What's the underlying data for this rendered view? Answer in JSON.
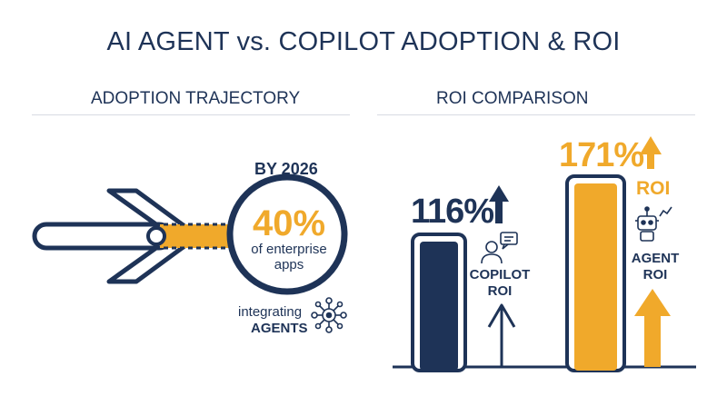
{
  "title": "AI AGENT vs. COPILOT ADOPTION & ROI",
  "adoption": {
    "heading": "ADOPTION TRAJECTORY",
    "year": "BY 2026",
    "percent": "40%",
    "description_line1": "of enterprise",
    "description_line2": "apps",
    "integrating": "integrating",
    "agents": "AGENTS",
    "icons": [
      "arrow-icon",
      "network-icon"
    ]
  },
  "roi": {
    "heading": "ROI COMPARISON",
    "copilot": {
      "value": "116%",
      "label_line1": "COPILOT",
      "label_line2": "ROI",
      "icon": "person-chat-icon"
    },
    "agent": {
      "value": "171%",
      "roi_word": "ROI",
      "label_line1": "AGENT",
      "label_line2": "ROI",
      "icon": "robot-icon"
    }
  },
  "colors": {
    "navy": "#1e3357",
    "gold": "#f0a92b",
    "divider": "#d7dbe2"
  }
}
